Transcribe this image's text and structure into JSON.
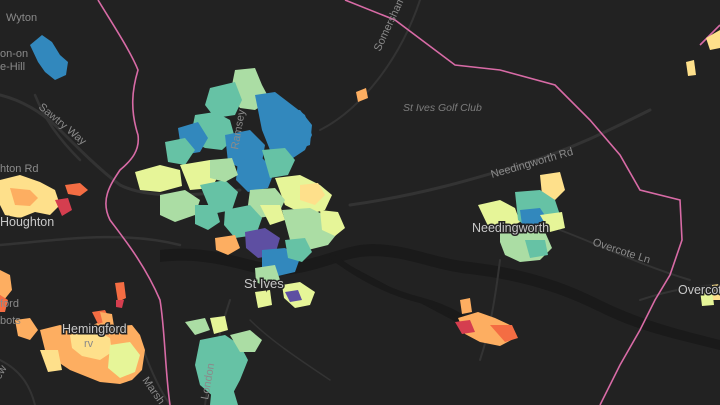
{
  "map": {
    "labels": {
      "wyton": "Wyton",
      "hill_top": "on-on",
      "hill_bottom": "e-Hill",
      "sawtry_way": "Sawtry Way",
      "somersham": "Somersham",
      "golf_club": "St Ives Golf Club",
      "needingworth_rd": "Needingworth Rd",
      "houghton_rd": "hton Rd",
      "houghton": "Houghton",
      "needingworth": "Needingworth",
      "overcote_ln": "Overcote Ln",
      "overcote": "Overcote",
      "st_ives": "St Ives",
      "hemingford": "Hemingford",
      "ford": "ford",
      "bots": "bots",
      "rv": "rv",
      "marsh": "Marsh",
      "london": "London",
      "ramsey": "Ramsey"
    },
    "palette": {
      "dark_purple": "#5e4fa2",
      "blue": "#3288bd",
      "teal": "#66c2a5",
      "light_green": "#abdda4",
      "pale_yellow": "#e6f598",
      "cream": "#fee08b",
      "orange": "#fdae61",
      "dark_orange": "#f46d43",
      "red": "#d53e4f",
      "boundary": "#d86ba6",
      "background": "#222222"
    }
  }
}
